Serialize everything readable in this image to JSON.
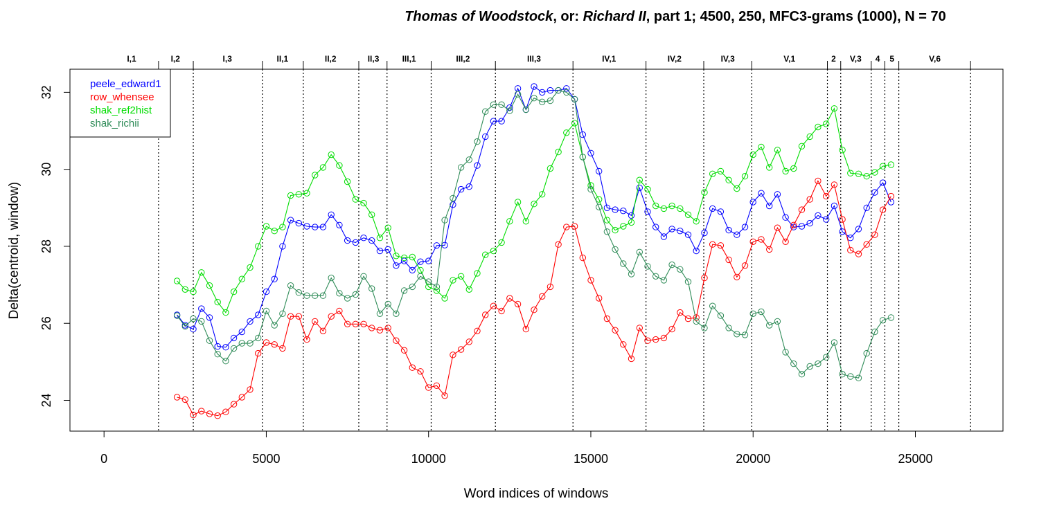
{
  "chart_data": {
    "type": "line",
    "title_parts": [
      {
        "text": "Thomas of Woodstock",
        "italic": true
      },
      {
        "text": ", or: ",
        "italic": false
      },
      {
        "text": "Richard II",
        "italic": true
      },
      {
        "text": ", part 1; 4500, 250, MFC3-grams (1000), N = 70",
        "italic": false
      }
    ],
    "xlabel": "Word indices of windows",
    "ylabel": "Delta(centroid, window)",
    "xlim": [
      -1050,
      27700
    ],
    "ylim": [
      23.2,
      32.6
    ],
    "xticks": [
      0,
      5000,
      10000,
      15000,
      20000,
      25000
    ],
    "xtick_labels": [
      "0",
      "5000",
      "10000",
      "15000",
      "20000",
      "25000"
    ],
    "yticks": [
      24,
      26,
      28,
      30,
      32
    ],
    "ytick_labels": [
      "24",
      "26",
      "28",
      "30",
      "32"
    ],
    "grid": false,
    "legend_position": "top-left",
    "marker": "open-circle",
    "scene_boundaries": [
      1680,
      2750,
      4880,
      6140,
      7850,
      8720,
      10080,
      12060,
      14450,
      16700,
      18480,
      19960,
      22290,
      22700,
      23640,
      24060,
      24490,
      26700
    ],
    "scenes": [
      {
        "label": "I,1",
        "x": 850
      },
      {
        "label": "I,2",
        "x": 2200
      },
      {
        "label": "I,3",
        "x": 3800
      },
      {
        "label": "II,1",
        "x": 5500
      },
      {
        "label": "II,2",
        "x": 6980
      },
      {
        "label": "II,3",
        "x": 8300
      },
      {
        "label": "III,1",
        "x": 9400
      },
      {
        "label": "III,2",
        "x": 11060
      },
      {
        "label": "III,3",
        "x": 13250
      },
      {
        "label": "IV,1",
        "x": 15560
      },
      {
        "label": "IV,2",
        "x": 17580
      },
      {
        "label": "IV,3",
        "x": 19220
      },
      {
        "label": "V,1",
        "x": 21120
      },
      {
        "label": "2",
        "x": 22480
      },
      {
        "label": "V,3",
        "x": 23160
      },
      {
        "label": "4",
        "x": 23840
      },
      {
        "label": "5",
        "x": 24280
      },
      {
        "label": "V,6",
        "x": 25600
      }
    ],
    "x": [
      2250,
      2500,
      2750,
      3000,
      3250,
      3500,
      3750,
      4000,
      4250,
      4500,
      4750,
      5000,
      5250,
      5500,
      5750,
      6000,
      6250,
      6500,
      6750,
      7000,
      7250,
      7500,
      7750,
      8000,
      8250,
      8500,
      8750,
      9000,
      9250,
      9500,
      9750,
      10000,
      10250,
      10500,
      10750,
      11000,
      11250,
      11500,
      11750,
      12000,
      12250,
      12500,
      12750,
      13000,
      13250,
      13500,
      13750,
      14000,
      14250,
      14500,
      14750,
      15000,
      15250,
      15500,
      15750,
      16000,
      16250,
      16500,
      16750,
      17000,
      17250,
      17500,
      17750,
      18000,
      18250,
      18500,
      18750,
      19000,
      19250,
      19500,
      19750,
      20000,
      20250,
      20500,
      20750,
      21000,
      21250,
      21500,
      21750,
      22000,
      22250,
      22500,
      22750,
      23000,
      23250,
      23500,
      23750,
      24000,
      24250
    ],
    "series": [
      {
        "name": "peele_edward1",
        "color": "#0000ff",
        "values": [
          26.22,
          25.95,
          25.85,
          26.38,
          26.15,
          25.4,
          25.38,
          25.62,
          25.78,
          26.05,
          26.22,
          26.82,
          27.15,
          28.0,
          28.68,
          28.6,
          28.52,
          28.5,
          28.5,
          28.82,
          28.55,
          28.15,
          28.1,
          28.22,
          28.15,
          27.88,
          27.92,
          27.5,
          27.62,
          27.38,
          27.6,
          27.62,
          28.02,
          28.03,
          29.08,
          29.48,
          29.55,
          30.1,
          30.85,
          31.25,
          31.25,
          31.6,
          32.1,
          31.55,
          32.15,
          32.0,
          32.05,
          32.05,
          32.1,
          31.82,
          30.9,
          30.42,
          29.95,
          29.0,
          28.95,
          28.92,
          28.8,
          29.52,
          28.9,
          28.5,
          28.25,
          28.45,
          28.4,
          28.3,
          27.88,
          28.35,
          28.98,
          28.9,
          28.42,
          28.3,
          28.5,
          29.15,
          29.38,
          29.05,
          29.35,
          28.75,
          28.5,
          28.52,
          28.6,
          28.8,
          28.7,
          29.05,
          28.38,
          28.22,
          28.45,
          29.0,
          29.4,
          29.65,
          29.15
        ]
      },
      {
        "name": "row_whensee",
        "color": "#ff0000",
        "values": [
          24.08,
          24.02,
          23.62,
          23.72,
          23.65,
          23.6,
          23.7,
          23.9,
          24.08,
          24.28,
          25.22,
          25.5,
          25.45,
          25.35,
          26.18,
          26.18,
          25.58,
          26.05,
          25.8,
          26.18,
          26.32,
          25.98,
          25.98,
          25.98,
          25.88,
          25.82,
          25.88,
          25.55,
          25.3,
          24.85,
          24.75,
          24.33,
          24.38,
          24.12,
          25.18,
          25.32,
          25.52,
          25.8,
          26.22,
          26.45,
          26.32,
          26.65,
          26.5,
          25.85,
          26.35,
          26.7,
          26.95,
          28.05,
          28.5,
          28.52,
          27.7,
          27.12,
          26.65,
          26.12,
          25.82,
          25.45,
          25.08,
          25.88,
          25.55,
          25.58,
          25.62,
          25.85,
          26.28,
          26.12,
          26.15,
          27.18,
          28.05,
          28.02,
          27.65,
          27.2,
          27.5,
          28.12,
          28.18,
          27.92,
          28.48,
          28.12,
          28.55,
          28.95,
          29.22,
          29.7,
          29.3,
          29.6,
          28.7,
          27.9,
          27.8,
          28.05,
          28.3,
          28.95,
          29.3
        ]
      },
      {
        "name": "shak_ref2hist",
        "color": "#00dd00",
        "values": [
          27.1,
          26.88,
          26.82,
          27.32,
          26.98,
          26.55,
          26.28,
          26.82,
          27.15,
          27.45,
          28.0,
          28.52,
          28.4,
          28.5,
          29.32,
          29.35,
          29.38,
          29.85,
          30.05,
          30.38,
          30.1,
          29.68,
          29.22,
          29.12,
          28.82,
          28.22,
          28.48,
          27.75,
          27.7,
          27.72,
          27.38,
          26.95,
          26.85,
          26.65,
          27.12,
          27.22,
          26.88,
          27.3,
          27.78,
          27.88,
          28.1,
          28.65,
          29.15,
          28.65,
          29.1,
          29.35,
          30.02,
          30.45,
          30.95,
          31.2,
          30.32,
          29.58,
          29.22,
          28.68,
          28.42,
          28.52,
          28.62,
          29.72,
          29.48,
          29.05,
          28.98,
          29.05,
          28.98,
          28.82,
          28.65,
          29.4,
          29.88,
          29.95,
          29.72,
          29.5,
          29.82,
          30.38,
          30.58,
          30.05,
          30.5,
          29.95,
          30.02,
          30.6,
          30.85,
          31.1,
          31.18,
          31.58,
          30.5,
          29.9,
          29.88,
          29.82,
          29.92,
          30.08,
          30.12
        ]
      },
      {
        "name": "shak_richii",
        "color": "#2e8b57",
        "values": [
          26.2,
          25.92,
          26.12,
          26.05,
          25.55,
          25.2,
          25.02,
          25.35,
          25.48,
          25.48,
          25.62,
          26.32,
          25.95,
          26.25,
          26.98,
          26.8,
          26.72,
          26.72,
          26.72,
          27.18,
          26.78,
          26.65,
          26.75,
          27.22,
          26.9,
          26.25,
          26.5,
          26.25,
          26.85,
          26.95,
          27.22,
          27.08,
          26.95,
          28.68,
          29.25,
          30.05,
          30.25,
          30.72,
          31.5,
          31.68,
          31.68,
          31.52,
          31.95,
          31.55,
          31.85,
          31.75,
          31.78,
          32.05,
          32.0,
          31.82,
          30.32,
          29.48,
          29.02,
          28.38,
          27.92,
          27.55,
          27.28,
          27.85,
          27.48,
          27.22,
          27.12,
          27.52,
          27.4,
          27.08,
          26.05,
          25.88,
          26.45,
          26.2,
          25.88,
          25.72,
          25.7,
          26.25,
          26.3,
          25.95,
          26.05,
          25.25,
          24.95,
          24.68,
          24.88,
          24.95,
          25.12,
          25.5,
          24.68,
          24.62,
          24.58,
          25.22,
          25.78,
          26.08,
          26.15
        ]
      }
    ]
  }
}
